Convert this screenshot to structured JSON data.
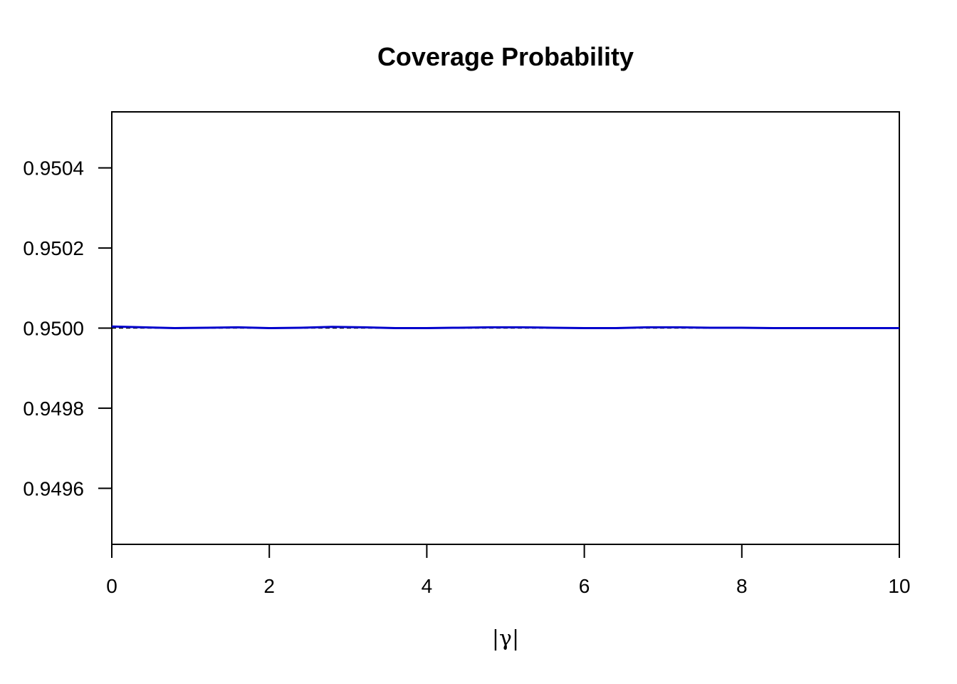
{
  "chart_data": {
    "type": "line",
    "title": "Coverage Probability",
    "xlabel": "|γ|",
    "ylabel": "",
    "xlim": [
      0,
      10
    ],
    "ylim": [
      0.94946,
      0.95054
    ],
    "x_ticks": [
      0,
      2,
      4,
      6,
      8,
      10
    ],
    "x_tick_labels": [
      "0",
      "2",
      "4",
      "6",
      "8",
      "10"
    ],
    "y_ticks": [
      0.9496,
      0.9498,
      0.95,
      0.9502,
      0.9504
    ],
    "y_tick_labels": [
      "0.9496",
      "0.9498",
      "0.9500",
      "0.9502",
      "0.9504"
    ],
    "grid": false,
    "series": [
      {
        "color": "#0000cc",
        "style": "solid",
        "x": [
          0,
          0.4,
          0.8,
          1.2,
          1.6,
          2.0,
          2.4,
          2.8,
          3.2,
          3.6,
          4.0,
          4.4,
          4.8,
          5.2,
          5.6,
          6.0,
          6.4,
          6.8,
          7.2,
          7.6,
          8.0,
          8.4,
          8.8,
          9.2,
          9.6,
          10.0
        ],
        "values": [
          0.950004,
          0.950002,
          0.95,
          0.950001,
          0.950002,
          0.95,
          0.950001,
          0.950003,
          0.950002,
          0.95,
          0.95,
          0.950001,
          0.950002,
          0.950002,
          0.950001,
          0.95,
          0.95,
          0.950002,
          0.950002,
          0.950001,
          0.950001,
          0.95,
          0.95,
          0.95,
          0.95,
          0.95
        ]
      },
      {
        "color": "#000000",
        "style": "dashed",
        "x": [
          0,
          10
        ],
        "values": [
          0.95,
          0.95
        ]
      }
    ]
  }
}
